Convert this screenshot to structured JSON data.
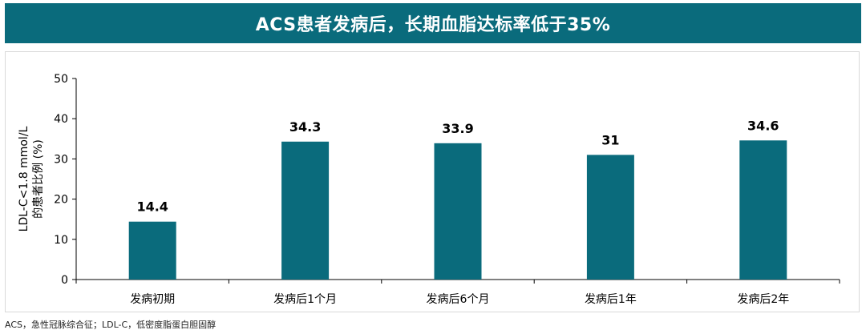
{
  "banner": {
    "title": "ACS患者发病后，长期血脂达标率低于35%",
    "color": "#0a6b7c"
  },
  "chart_data": {
    "type": "bar",
    "categories": [
      "发病初期",
      "发病后1个月",
      "发病后6个月",
      "发病后1年",
      "发病后2年"
    ],
    "values": [
      14.4,
      34.3,
      33.9,
      31,
      34.6
    ],
    "data_labels": [
      "14.4",
      "34.3",
      "33.9",
      "31",
      "34.6"
    ],
    "ylabel_line1": "LDL-C<1.8 mmol/L",
    "ylabel_line2": "的患者比例 (%)",
    "ylim": [
      0,
      50
    ],
    "yticks": [
      0,
      10,
      20,
      30,
      40,
      50
    ],
    "grid": false,
    "legend": "none",
    "bar_color": "#0a6b7c"
  },
  "footnote": "ACS，急性冠脉综合征；LDL-C，低密度脂蛋白胆固醇"
}
